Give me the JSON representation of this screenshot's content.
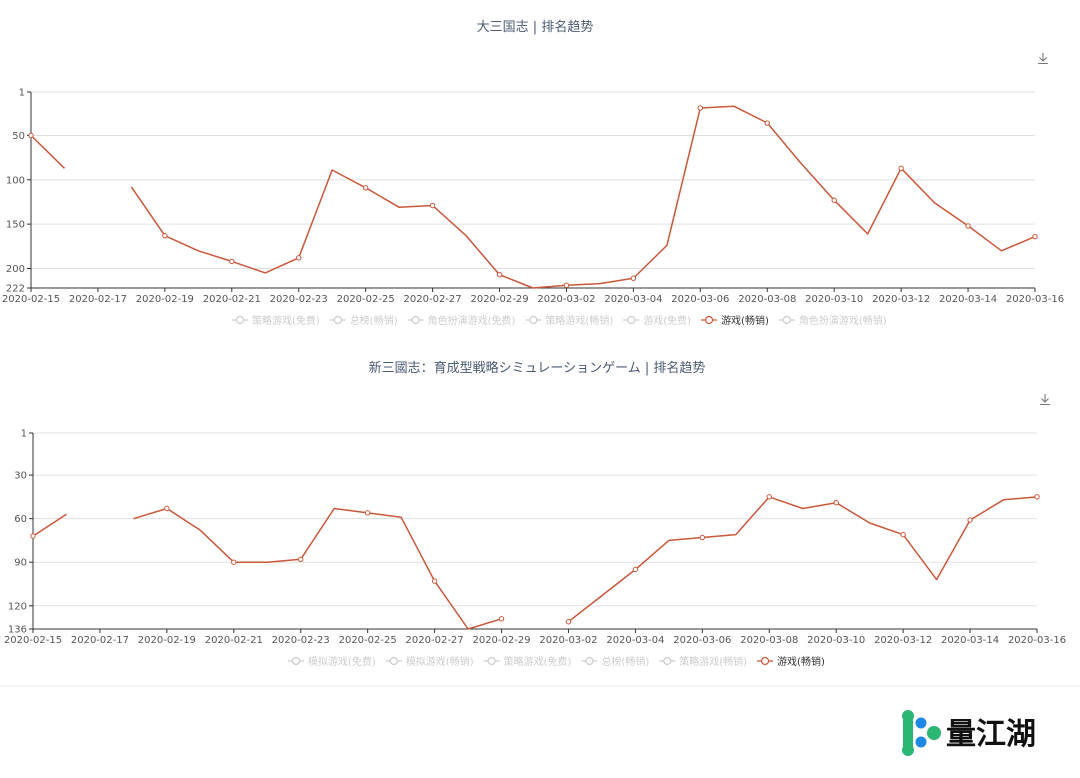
{
  "chart_data": [
    {
      "type": "line",
      "title": "大三国志 | 排名趋势",
      "y_inverted": true,
      "ylim": [
        1,
        222
      ],
      "y_ticks": [
        1,
        50,
        100,
        150,
        200,
        222
      ],
      "x": [
        "2020-02-15",
        "2020-02-16",
        "2020-02-17",
        "2020-02-18",
        "2020-02-19",
        "2020-02-20",
        "2020-02-21",
        "2020-02-22",
        "2020-02-23",
        "2020-02-24",
        "2020-02-25",
        "2020-02-26",
        "2020-02-27",
        "2020-02-28",
        "2020-02-29",
        "2020-03-01",
        "2020-03-02",
        "2020-03-03",
        "2020-03-04",
        "2020-03-05",
        "2020-03-06",
        "2020-03-07",
        "2020-03-08",
        "2020-03-09",
        "2020-03-10",
        "2020-03-11",
        "2020-03-12",
        "2020-03-13",
        "2020-03-14",
        "2020-03-15",
        "2020-03-16"
      ],
      "x_tick_labels": [
        "2020-02-15",
        "2020-02-17",
        "2020-02-19",
        "2020-02-21",
        "2020-02-23",
        "2020-02-25",
        "2020-02-27",
        "2020-02-29",
        "2020-03-02",
        "2020-03-04",
        "2020-03-06",
        "2020-03-08",
        "2020-03-10",
        "2020-03-12",
        "2020-03-14",
        "2020-03-16"
      ],
      "series": [
        {
          "name": "游戏(畅销)",
          "color": "#c9573a",
          "values": [
            50,
            87,
            null,
            108,
            163,
            180,
            192,
            205,
            188,
            89,
            109,
            131,
            129,
            163,
            207,
            222,
            219,
            217,
            211,
            174,
            19,
            17,
            36,
            81,
            123,
            161,
            87,
            126,
            152,
            180,
            164
          ]
        }
      ],
      "legend": [
        {
          "label": "策略游戏(免费)",
          "active": false
        },
        {
          "label": "总榜(畅销)",
          "active": false
        },
        {
          "label": "角色扮演游戏(免费)",
          "active": false
        },
        {
          "label": "策略游戏(畅销)",
          "active": false
        },
        {
          "label": "游戏(免费)",
          "active": false
        },
        {
          "label": "游戏(畅销)",
          "active": true
        },
        {
          "label": "角色扮演游戏(畅销)",
          "active": false
        }
      ]
    },
    {
      "type": "line",
      "title": "新三國志：育成型戦略シミュレーションゲーム | 排名趋势",
      "y_inverted": true,
      "ylim": [
        1,
        136
      ],
      "y_ticks": [
        1,
        30,
        60,
        90,
        120,
        136
      ],
      "x": [
        "2020-02-15",
        "2020-02-16",
        "2020-02-17",
        "2020-02-18",
        "2020-02-19",
        "2020-02-20",
        "2020-02-21",
        "2020-02-22",
        "2020-02-23",
        "2020-02-24",
        "2020-02-25",
        "2020-02-26",
        "2020-02-27",
        "2020-02-28",
        "2020-02-29",
        "2020-03-01",
        "2020-03-02",
        "2020-03-03",
        "2020-03-04",
        "2020-03-05",
        "2020-03-06",
        "2020-03-07",
        "2020-03-08",
        "2020-03-09",
        "2020-03-10",
        "2020-03-11",
        "2020-03-12",
        "2020-03-13",
        "2020-03-14",
        "2020-03-15",
        "2020-03-16"
      ],
      "x_tick_labels": [
        "2020-02-15",
        "2020-02-17",
        "2020-02-19",
        "2020-02-21",
        "2020-02-23",
        "2020-02-25",
        "2020-02-27",
        "2020-02-29",
        "2020-03-02",
        "2020-03-04",
        "2020-03-06",
        "2020-03-08",
        "2020-03-10",
        "2020-03-12",
        "2020-03-14",
        "2020-03-16"
      ],
      "series": [
        {
          "name": "游戏(畅销)",
          "color": "#c9573a",
          "values": [
            72,
            57,
            null,
            60,
            53,
            68,
            90,
            90,
            88,
            53,
            56,
            59,
            103,
            136,
            129,
            null,
            131,
            113,
            95,
            75,
            73,
            71,
            45,
            53,
            49,
            63,
            71,
            102,
            61,
            47,
            45
          ]
        }
      ],
      "legend": [
        {
          "label": "模拟游戏(免费)",
          "active": false
        },
        {
          "label": "模拟游戏(畅销)",
          "active": false
        },
        {
          "label": "策略游戏(免费)",
          "active": false
        },
        {
          "label": "总榜(畅销)",
          "active": false
        },
        {
          "label": "策略游戏(畅销)",
          "active": false
        },
        {
          "label": "游戏(畅销)",
          "active": true
        }
      ]
    }
  ],
  "brand": {
    "name": "量江湖"
  },
  "colors": {
    "line": "#c9573a",
    "legend_inactive": "#cccccc",
    "legend_active": "#333333",
    "axis": "#333333",
    "grid": "#e0e0e0"
  }
}
